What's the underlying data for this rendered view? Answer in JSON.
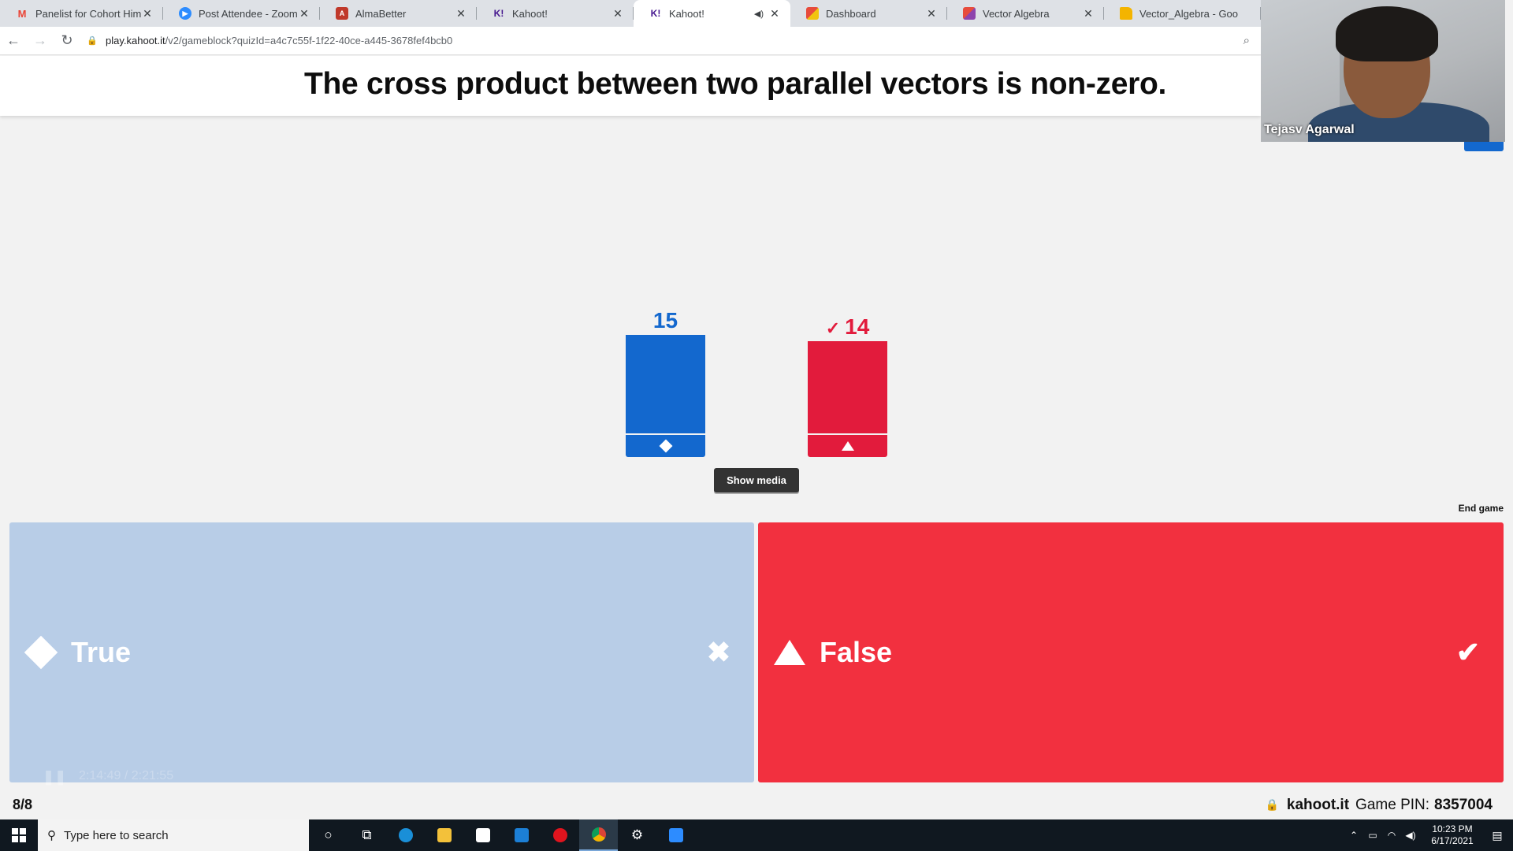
{
  "browser": {
    "tabs": [
      {
        "title": "Panelist for Cohort Himala",
        "favicon": "gmail-icon"
      },
      {
        "title": "Post Attendee - Zoom",
        "favicon": "zoom-icon"
      },
      {
        "title": "AlmaBetter",
        "favicon": "almabetter-icon"
      },
      {
        "title": "Kahoot!",
        "favicon": "kahoot-icon"
      },
      {
        "title": "Kahoot!",
        "favicon": "kahoot-icon",
        "active": true,
        "audio": true
      },
      {
        "title": "Dashboard",
        "favicon": "dashboard-icon"
      },
      {
        "title": "Vector Algebra",
        "favicon": "slides-icon"
      },
      {
        "title": "Vector_Algebra - Goo",
        "favicon": "docs-icon"
      }
    ],
    "url_host": "play.kahoot.it",
    "url_path": "/v2/gameblock?quizId=a4c7c55f-1f22-40ce-a445-3678fef4bcb0"
  },
  "question": {
    "text": "The cross product between two parallel vectors is non-zero."
  },
  "webcam": {
    "participant_name": "Tejasv Agarwal"
  },
  "results": {
    "max": 15,
    "bars": [
      {
        "label": "True",
        "count": 15,
        "color": "#1368ce",
        "shape": "diamond",
        "correct": false
      },
      {
        "label": "False",
        "count": 14,
        "color": "#e21b3c",
        "shape": "triangle",
        "correct": true
      }
    ],
    "correct_mark": "✓"
  },
  "controls": {
    "show_media": "Show media",
    "end_game": "End game"
  },
  "answers": [
    {
      "label": "True",
      "mark": "✖",
      "color": "#b8cde7"
    },
    {
      "label": "False",
      "mark": "✔",
      "color": "#f2303f"
    }
  ],
  "video_overlay": {
    "time": "2:14:49 / 2:21:55"
  },
  "footer": {
    "progress": "8/8",
    "host": "kahoot.it",
    "pin_label": "Game PIN:",
    "pin": "8357004"
  },
  "taskbar": {
    "search_placeholder": "Type here to search",
    "time": "10:23 PM",
    "date": "6/17/2021"
  }
}
